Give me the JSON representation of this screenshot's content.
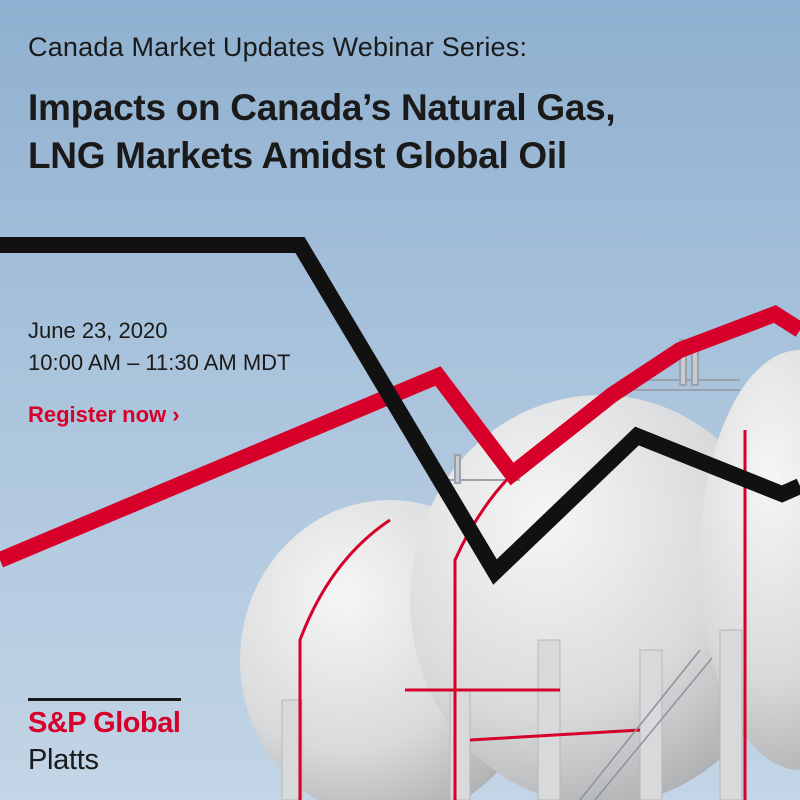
{
  "banner": {
    "series": "Canada Market Updates Webinar Series:",
    "title_line1": "Impacts on Canada’s Natural Gas,",
    "title_line2": "LNG Markets Amidst Global Oil",
    "date": "June 23, 2020",
    "time": "10:00 AM – 11:30 AM MDT",
    "cta": "Register now ›",
    "logo_brand": "S&P Global",
    "logo_sub": "Platts"
  },
  "colors": {
    "accent_red": "#d6002a",
    "line_black": "#111111",
    "sky": "#a9c3dc",
    "tank": "#e8e9ea"
  },
  "image": {
    "subject": "lng-storage-spheres"
  }
}
